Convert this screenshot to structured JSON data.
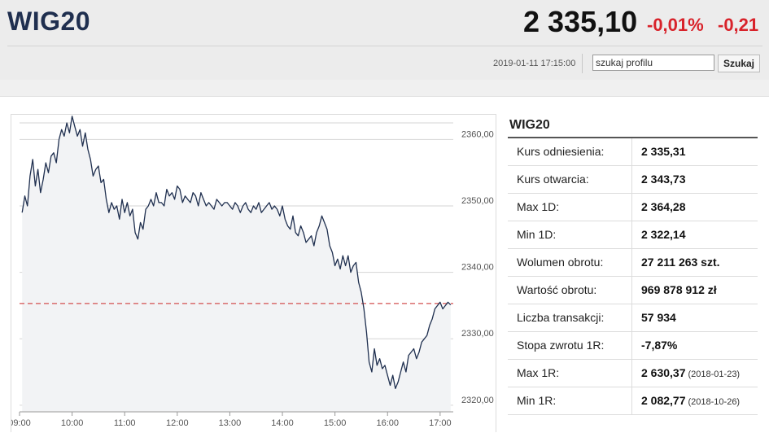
{
  "header": {
    "index_name": "WIG20",
    "price": "2 335,10",
    "change_pct": "-0,01%",
    "change_abs": "-0,21",
    "timestamp": "2019-01-11 17:15:00",
    "search_value": "szukaj profilu",
    "search_button": "Szukaj"
  },
  "colors": {
    "negative": "#d8222a",
    "line": "#1f2f4f",
    "reference_line": "#d35050",
    "area_fill": "#f2f3f5"
  },
  "info": {
    "title": "WIG20",
    "rows": [
      {
        "label": "Kurs odniesienia:",
        "value": "2 335,31",
        "note": ""
      },
      {
        "label": "Kurs otwarcia:",
        "value": "2 343,73",
        "note": ""
      },
      {
        "label": "Max 1D:",
        "value": "2 364,28",
        "note": ""
      },
      {
        "label": "Min 1D:",
        "value": "2 322,14",
        "note": ""
      },
      {
        "label": "Wolumen obrotu:",
        "value": "27 211 263 szt.",
        "note": ""
      },
      {
        "label": "Wartość obrotu:",
        "value": "969 878 912 zł",
        "note": ""
      },
      {
        "label": "Liczba transakcji:",
        "value": "57 934",
        "note": ""
      },
      {
        "label": "Stopa zwrotu 1R:",
        "value": "-7,87%",
        "note": ""
      },
      {
        "label": "Max 1R:",
        "value": "2 630,37",
        "note": "(2018-01-23)"
      },
      {
        "label": "Min 1R:",
        "value": "2 082,77",
        "note": "(2018-10-26)"
      }
    ]
  },
  "chart_data": {
    "type": "area",
    "title": "",
    "xlabel": "",
    "ylabel": "",
    "x_ticks": [
      "09:00",
      "10:00",
      "11:00",
      "12:00",
      "13:00",
      "14:00",
      "15:00",
      "16:00",
      "17:00"
    ],
    "y_ticks": [
      "2320,00",
      "2330,00",
      "2340,00",
      "2350,00",
      "2360,00"
    ],
    "y_tick_values": [
      2320,
      2330,
      2340,
      2350,
      2360
    ],
    "ylim": [
      2319,
      2362.5
    ],
    "xlim_hours": [
      9.0,
      17.25
    ],
    "grid": true,
    "reference_value": 2335.31,
    "series": [
      {
        "x": [
          9.05,
          9.1,
          9.15,
          9.2,
          9.25,
          9.3,
          9.35,
          9.4,
          9.45,
          9.5,
          9.55,
          9.6,
          9.65,
          9.7,
          9.75,
          9.8,
          9.85,
          9.9,
          9.95,
          10.0,
          10.05,
          10.1,
          10.15,
          10.2,
          10.25,
          10.3,
          10.35,
          10.4,
          10.45,
          10.5,
          10.55,
          10.6,
          10.65,
          10.7,
          10.75,
          10.8,
          10.85,
          10.9,
          10.95,
          11.0,
          11.05,
          11.1,
          11.15,
          11.2,
          11.25,
          11.3,
          11.35,
          11.4,
          11.45,
          11.5,
          11.55,
          11.6,
          11.65,
          11.7,
          11.75,
          11.8,
          11.85,
          11.9,
          11.95,
          12.0,
          12.05,
          12.1,
          12.15,
          12.2,
          12.25,
          12.3,
          12.35,
          12.4,
          12.45,
          12.5,
          12.55,
          12.6,
          12.65,
          12.7,
          12.75,
          12.8,
          12.85,
          12.9,
          12.95,
          13.0,
          13.05,
          13.1,
          13.15,
          13.2,
          13.25,
          13.3,
          13.35,
          13.4,
          13.45,
          13.5,
          13.55,
          13.6,
          13.65,
          13.7,
          13.75,
          13.8,
          13.85,
          13.9,
          13.95,
          14.0,
          14.05,
          14.1,
          14.15,
          14.2,
          14.25,
          14.3,
          14.35,
          14.4,
          14.45,
          14.5,
          14.55,
          14.6,
          14.65,
          14.7,
          14.75,
          14.8,
          14.85,
          14.9,
          14.95,
          15.0,
          15.05,
          15.1,
          15.15,
          15.2,
          15.25,
          15.3,
          15.35,
          15.4,
          15.45,
          15.5,
          15.55,
          15.6,
          15.65,
          15.7,
          15.75,
          15.8,
          15.85,
          15.9,
          15.95,
          16.0,
          16.05,
          16.1,
          16.15,
          16.2,
          16.25,
          16.3,
          16.35,
          16.4,
          16.45,
          16.5,
          16.55,
          16.6,
          16.65,
          16.7,
          16.75,
          16.8,
          16.85,
          16.9,
          16.95,
          17.0,
          17.05,
          17.1,
          17.15,
          17.2
        ],
        "values": [
          2349.0,
          2351.5,
          2350.0,
          2354.5,
          2357.0,
          2353.0,
          2355.5,
          2352.0,
          2354.0,
          2356.5,
          2355.0,
          2357.5,
          2358.0,
          2356.5,
          2360.0,
          2361.5,
          2360.5,
          2362.5,
          2361.0,
          2363.5,
          2362.0,
          2360.5,
          2361.5,
          2359.0,
          2361.0,
          2358.5,
          2357.0,
          2354.5,
          2355.5,
          2356.0,
          2353.5,
          2354.0,
          2351.0,
          2349.0,
          2350.5,
          2349.5,
          2350.0,
          2348.0,
          2351.0,
          2349.0,
          2350.5,
          2348.5,
          2349.5,
          2346.0,
          2345.0,
          2347.5,
          2346.5,
          2349.5,
          2350.0,
          2351.0,
          2350.0,
          2352.0,
          2350.5,
          2350.5,
          2350.0,
          2352.5,
          2351.5,
          2352.0,
          2351.0,
          2353.0,
          2352.5,
          2350.5,
          2351.5,
          2351.0,
          2350.5,
          2352.0,
          2351.5,
          2350.0,
          2352.0,
          2351.0,
          2350.0,
          2350.5,
          2350.0,
          2349.5,
          2351.0,
          2350.5,
          2350.0,
          2350.5,
          2350.5,
          2350.0,
          2349.5,
          2350.5,
          2350.0,
          2349.0,
          2350.0,
          2350.5,
          2349.5,
          2349.0,
          2350.0,
          2349.5,
          2350.5,
          2349.0,
          2349.5,
          2350.0,
          2350.5,
          2349.5,
          2350.0,
          2349.5,
          2348.5,
          2350.0,
          2348.0,
          2347.0,
          2346.5,
          2348.5,
          2346.0,
          2345.5,
          2347.0,
          2346.0,
          2344.5,
          2345.0,
          2345.5,
          2344.0,
          2346.0,
          2347.0,
          2348.5,
          2347.5,
          2346.5,
          2344.0,
          2343.0,
          2341.0,
          2342.0,
          2340.5,
          2342.5,
          2341.0,
          2342.5,
          2340.0,
          2341.0,
          2341.5,
          2338.5,
          2337.0,
          2334.5,
          2331.0,
          2326.5,
          2325.0,
          2328.5,
          2326.0,
          2327.0,
          2325.5,
          2326.0,
          2324.5,
          2323.0,
          2324.5,
          2322.5,
          2323.5,
          2325.0,
          2326.5,
          2325.0,
          2327.5,
          2328.0,
          2328.5,
          2327.0,
          2328.0,
          2329.5,
          2330.0,
          2330.5,
          2332.0,
          2333.0,
          2334.5,
          2335.0,
          2335.5,
          2334.5,
          2335.0,
          2335.5,
          2335.1
        ]
      }
    ]
  }
}
